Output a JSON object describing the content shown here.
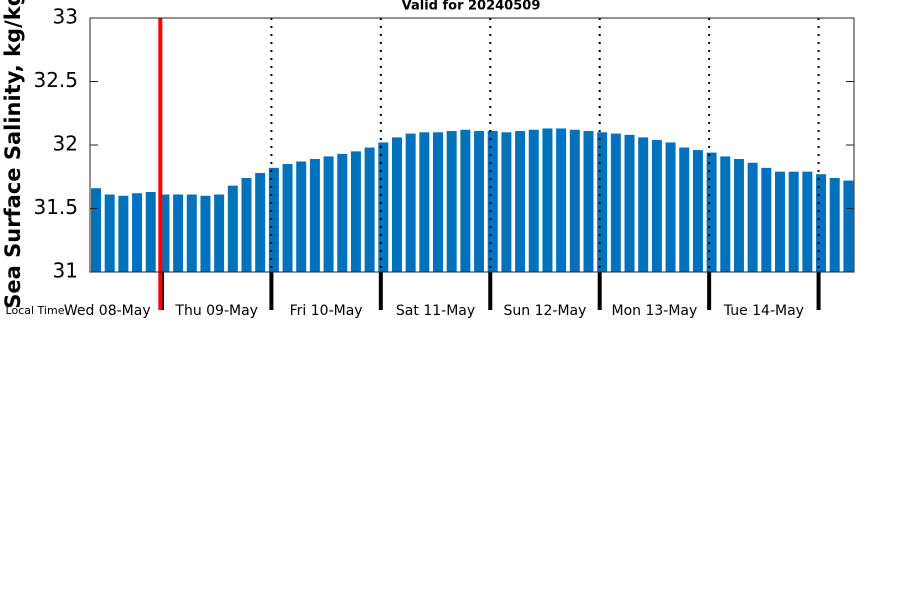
{
  "chart_data": {
    "type": "bar",
    "title": "Valid for 20240509",
    "ylabel": "Sea Surface Salinity, kg/kg",
    "xlabel": "Local Time",
    "categories": [
      null,
      null,
      null,
      null,
      null,
      null,
      null,
      null,
      null,
      null,
      null,
      null,
      null,
      null,
      null,
      null,
      null,
      null,
      null,
      null,
      null,
      null,
      null,
      null,
      null,
      null,
      null,
      null,
      null,
      null,
      null,
      null,
      null,
      null,
      null,
      null,
      null,
      null,
      null,
      null,
      null,
      null,
      null,
      null,
      null,
      null,
      null,
      null,
      null,
      null,
      null,
      null,
      null,
      null,
      null,
      null
    ],
    "values": [
      31.66,
      31.61,
      31.6,
      31.62,
      31.63,
      31.61,
      31.61,
      31.61,
      31.6,
      31.61,
      31.68,
      31.74,
      31.78,
      31.82,
      31.85,
      31.87,
      31.89,
      31.91,
      31.93,
      31.95,
      31.98,
      32.02,
      32.06,
      32.09,
      32.1,
      32.1,
      32.11,
      32.12,
      32.11,
      32.11,
      32.1,
      32.11,
      32.12,
      32.13,
      32.13,
      32.12,
      32.11,
      32.1,
      32.09,
      32.08,
      32.06,
      32.04,
      32.02,
      31.98,
      31.96,
      31.94,
      31.91,
      31.89,
      31.86,
      31.82,
      31.79,
      31.79,
      31.79,
      31.77,
      31.74,
      31.72
    ],
    "color": "#0072bd",
    "xlim": [
      -0.44,
      55.41
    ],
    "xticks": [
      {
        "value": 0.82,
        "label": "Wed 08-May"
      },
      {
        "value": 8.82,
        "label": "Thu 09-May"
      },
      {
        "value": 16.82,
        "label": "Fri 10-May"
      },
      {
        "value": 24.82,
        "label": "Sat 11-May"
      },
      {
        "value": 32.82,
        "label": "Sun 12-May"
      },
      {
        "value": 40.82,
        "label": "Mon 13-May"
      },
      {
        "value": 48.82,
        "label": "Tue 14-May"
      }
    ],
    "day_boundaries": [
      4.82,
      12.82,
      20.82,
      28.82,
      36.82,
      44.82,
      52.82
    ],
    "now_x": 4.7,
    "now_color": "#ff0000",
    "ylim": [
      31,
      33
    ],
    "yticks": [
      31,
      31.5,
      32,
      32.5,
      33
    ]
  }
}
